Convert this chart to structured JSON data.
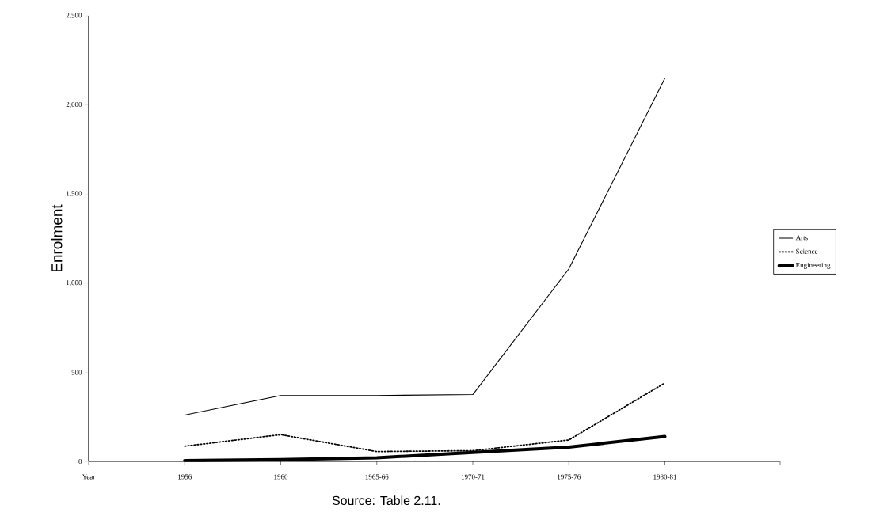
{
  "chart_data": {
    "type": "line",
    "xlabel": "Year",
    "ylabel": "Enrolment",
    "annotations": [
      "Source: Table 2.11."
    ],
    "categories": [
      "1956",
      "1960",
      "1965-66",
      "1970-71",
      "1975-76",
      "1980-81"
    ],
    "ylim": [
      0,
      2500
    ],
    "yticks": [
      0,
      {
        "value": 500,
        "label": "500"
      },
      {
        "value": 1000,
        "label": "1,000"
      },
      {
        "value": 1500,
        "label": "1,500"
      },
      {
        "value": 2000,
        "label": "2,000"
      },
      {
        "value": 2500,
        "label": "2,500"
      }
    ],
    "series": [
      {
        "name": "Arts",
        "color": "#000000",
        "line_style": "solid",
        "values": [
          260,
          370,
          370,
          375,
          1080,
          2150
        ]
      },
      {
        "name": "Science",
        "color": "#000000",
        "line_style": "dotted",
        "values": [
          85,
          150,
          55,
          60,
          120,
          440
        ]
      },
      {
        "name": "Engineering",
        "color": "#000000",
        "line_style": "solid",
        "values": [
          5,
          10,
          20,
          50,
          80,
          140
        ]
      }
    ],
    "legend": "right",
    "grid": false,
    "marker": "none"
  }
}
